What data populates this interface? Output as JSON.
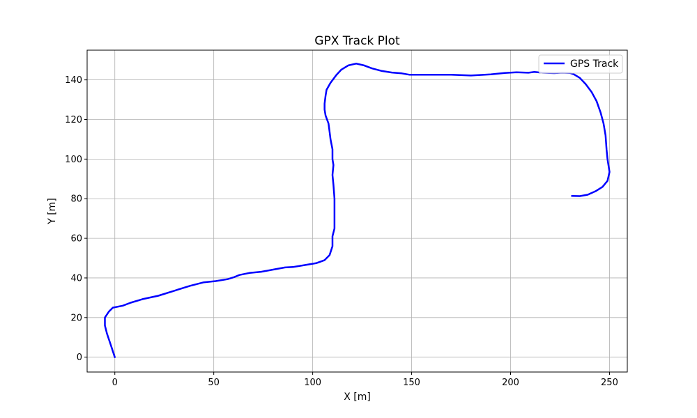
{
  "chart_data": {
    "type": "line",
    "title": "GPX Track Plot",
    "xlabel": "X [m]",
    "ylabel": "Y [m]",
    "xlim": [
      -14,
      259
    ],
    "ylim": [
      -7.5,
      155
    ],
    "xticks": [
      0,
      50,
      100,
      150,
      200,
      250
    ],
    "yticks": [
      0,
      20,
      40,
      60,
      80,
      100,
      120,
      140
    ],
    "grid": true,
    "legend": "top-right",
    "series": [
      {
        "name": "GPS Track",
        "color": "#0000ff",
        "points": [
          [
            0,
            0
          ],
          [
            -2,
            6
          ],
          [
            -4,
            12
          ],
          [
            -5,
            16
          ],
          [
            -5,
            20
          ],
          [
            -3,
            23
          ],
          [
            -1,
            25
          ],
          [
            4,
            26
          ],
          [
            8,
            27.5
          ],
          [
            14,
            29.3
          ],
          [
            22,
            31
          ],
          [
            30,
            33.5
          ],
          [
            38,
            36
          ],
          [
            45,
            37.8
          ],
          [
            51,
            38.4
          ],
          [
            57,
            39.4
          ],
          [
            60,
            40.3
          ],
          [
            63,
            41.5
          ],
          [
            68,
            42.5
          ],
          [
            74,
            43.1
          ],
          [
            80,
            44.2
          ],
          [
            86,
            45.3
          ],
          [
            90,
            45.5
          ],
          [
            96,
            46.5
          ],
          [
            102,
            47.5
          ],
          [
            106,
            49
          ],
          [
            108.5,
            51.5
          ],
          [
            110,
            56
          ],
          [
            110,
            61
          ],
          [
            111,
            65
          ],
          [
            111,
            70
          ],
          [
            111,
            80
          ],
          [
            110.5,
            87
          ],
          [
            110,
            92
          ],
          [
            110.5,
            97
          ],
          [
            110,
            100
          ],
          [
            110,
            105
          ],
          [
            109,
            110
          ],
          [
            108.5,
            114
          ],
          [
            108,
            118
          ],
          [
            106.5,
            122
          ],
          [
            106,
            125
          ],
          [
            106,
            128
          ],
          [
            106.5,
            132
          ],
          [
            107,
            135
          ],
          [
            109,
            138.5
          ],
          [
            112,
            142.5
          ],
          [
            114.5,
            145.2
          ],
          [
            118,
            147.3
          ],
          [
            122,
            148.2
          ],
          [
            126,
            147.3
          ],
          [
            130,
            145.8
          ],
          [
            135,
            144.5
          ],
          [
            140,
            143.7
          ],
          [
            145,
            143.3
          ],
          [
            149,
            142.6
          ],
          [
            160,
            142.6
          ],
          [
            170,
            142.6
          ],
          [
            180,
            142.2
          ],
          [
            190,
            142.8
          ],
          [
            197,
            143.5
          ],
          [
            203,
            143.8
          ],
          [
            209,
            143.6
          ],
          [
            212,
            144
          ],
          [
            216,
            143.6
          ],
          [
            222,
            143.4
          ],
          [
            226,
            143.6
          ],
          [
            230,
            143.5
          ],
          [
            232,
            142.8
          ],
          [
            235,
            141
          ],
          [
            238,
            137.8
          ],
          [
            241,
            133.8
          ],
          [
            243.5,
            129.2
          ],
          [
            245.5,
            123.5
          ],
          [
            247,
            118
          ],
          [
            248,
            112
          ],
          [
            248.5,
            105
          ],
          [
            249,
            100
          ],
          [
            250,
            93.5
          ],
          [
            249,
            89
          ],
          [
            246.5,
            86
          ],
          [
            243,
            83.8
          ],
          [
            239,
            82
          ],
          [
            235,
            81.3
          ],
          [
            231,
            81.4
          ]
        ]
      }
    ]
  }
}
